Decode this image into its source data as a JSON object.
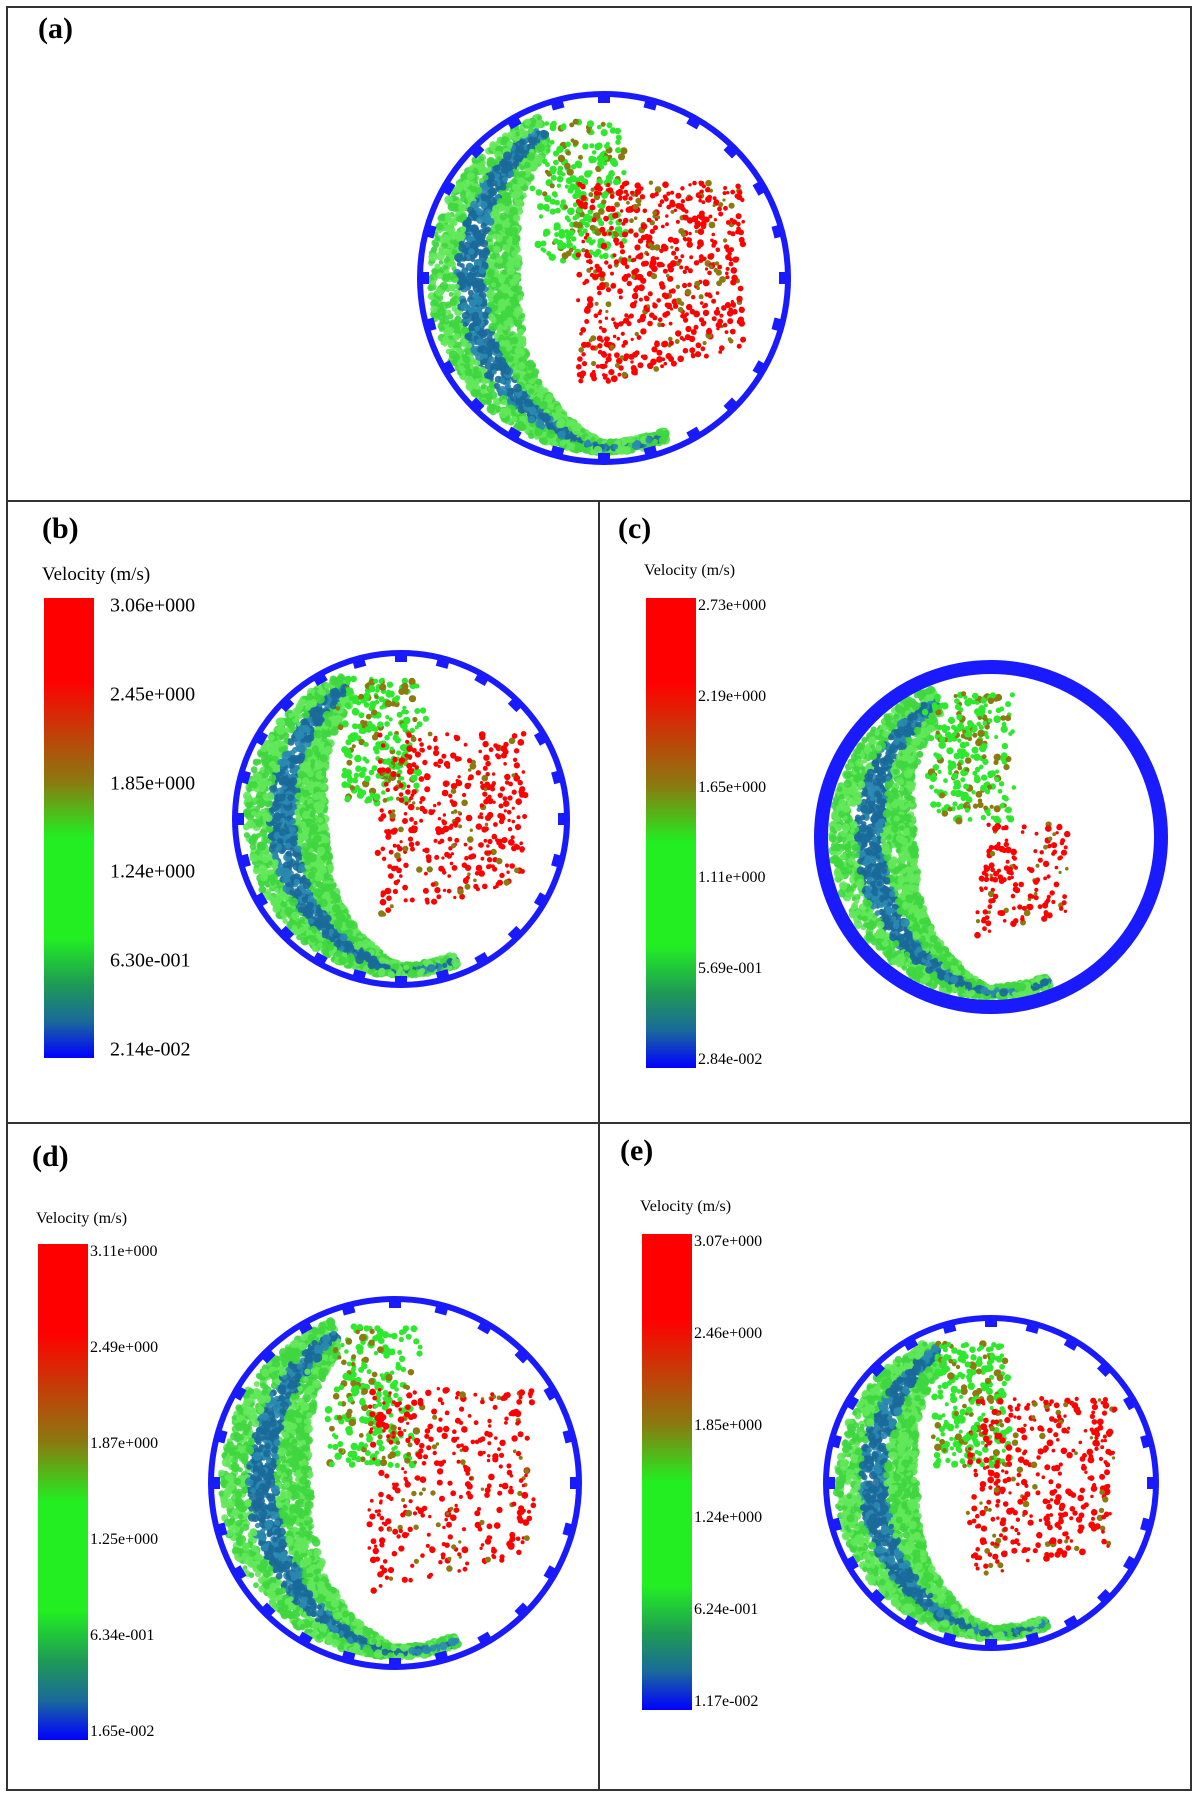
{
  "panels": [
    {
      "id": "a",
      "label": "(a)",
      "legend": null,
      "wall_style": "lifters"
    },
    {
      "id": "b",
      "label": "(b)",
      "legend": {
        "title": "Velocity (m/s)",
        "ticks": [
          "3.06e+000",
          "2.45e+000",
          "1.85e+000",
          "1.24e+000",
          "6.30e-001",
          "2.14e-002"
        ]
      },
      "wall_style": "lifters"
    },
    {
      "id": "c",
      "label": "(c)",
      "legend": {
        "title": "Velocity (m/s)",
        "ticks": [
          "2.73e+000",
          "2.19e+000",
          "1.65e+000",
          "1.11e+000",
          "5.69e-001",
          "2.84e-002"
        ]
      },
      "wall_style": "smooth"
    },
    {
      "id": "d",
      "label": "(d)",
      "legend": {
        "title": "Velocity (m/s)",
        "ticks": [
          "3.11e+000",
          "2.49e+000",
          "1.87e+000",
          "1.25e+000",
          "6.34e-001",
          "1.65e-002"
        ]
      },
      "wall_style": "lifters"
    },
    {
      "id": "e",
      "label": "(e)",
      "legend": {
        "title": "Velocity (m/s)",
        "ticks": [
          "3.07e+000",
          "2.46e+000",
          "1.85e+000",
          "1.24e+000",
          "6.24e-001",
          "1.17e-002"
        ]
      },
      "wall_style": "lifters"
    }
  ],
  "colors": {
    "wall": "#1a1aff",
    "high": "#ff0000",
    "mid_high": "#8a7a10",
    "mid": "#22ee22",
    "low": "#1a6a9a",
    "min": "#0000ff"
  }
}
